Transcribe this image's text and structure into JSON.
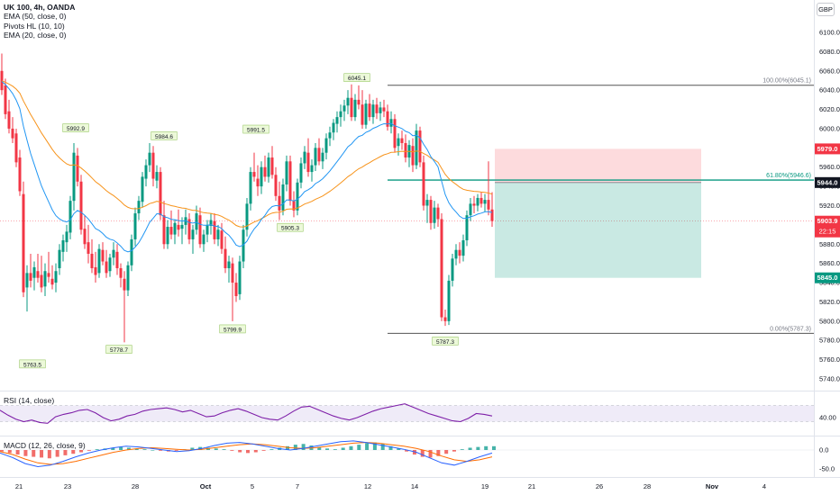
{
  "header": {
    "symbol_line": "UK 100, 4h, OANDA",
    "indicators": [
      "EMA (50, close, 0)",
      "Pivots HL (10, 10)",
      "EMA (20, close, 0)"
    ],
    "currency": "GBP"
  },
  "price_axis": {
    "ticks": [
      "6100.0",
      "6080.0",
      "6060.0",
      "6040.0",
      "6020.0",
      "6000.0",
      "5980.0",
      "5960.0",
      "5940.0",
      "5920.0",
      "5900.0",
      "5880.0",
      "5860.0",
      "5840.0",
      "5820.0",
      "5800.0",
      "5780.0",
      "5760.0",
      "5740.0"
    ],
    "badges": {
      "stop": "5979.0",
      "entry": "5944.0",
      "current": "5903.9",
      "countdown": "22:15",
      "target": "5845.0"
    },
    "colors": {
      "stop": "#f23645",
      "entry": "#131722",
      "current": "#f23645",
      "target": "#089981"
    }
  },
  "time_axis": {
    "labels": [
      "21",
      "23",
      "28",
      "Oct",
      "5",
      "7",
      "12",
      "14",
      "19",
      "21",
      "26",
      "28",
      "Nov",
      "4"
    ]
  },
  "fibonacci": {
    "top_label": "100.00%(6045.1)",
    "mid_label": "61.80%(5946.6)",
    "bottom_label": "0.00%(5787.3)"
  },
  "pivots": [
    "5763.5",
    "5992.9",
    "5778.7",
    "5984.6",
    "5991.5",
    "5799.9",
    "5905.3",
    "6045.1",
    "5787.3"
  ],
  "rsi": {
    "label": "RSI (14, close)",
    "tick": "40.00"
  },
  "macd": {
    "label": "MACD (12, 26, close, 9)",
    "ticks": [
      "0.0",
      "-50.0"
    ]
  },
  "colors": {
    "up": "#089981",
    "down": "#f23645",
    "ema_fast": "#2196f3",
    "ema_slow": "#f7931a",
    "rsi": "#7e1fa8"
  }
}
